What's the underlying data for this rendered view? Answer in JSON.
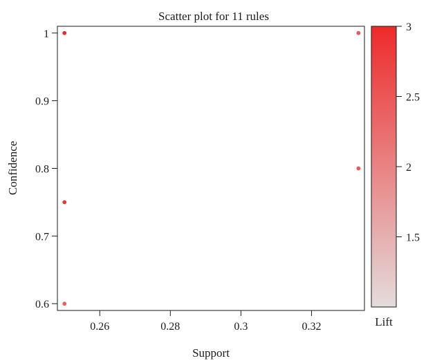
{
  "chart_data": {
    "type": "scatter",
    "title": "Scatter plot for 11 rules",
    "xlabel": "Support",
    "ylabel": "Confidence",
    "xlim": [
      0.248,
      0.335
    ],
    "ylim": [
      0.59,
      1.01
    ],
    "x_ticks": [
      0.26,
      0.28,
      0.3,
      0.32
    ],
    "x_tick_labels": [
      "0.26",
      "0.28",
      "0.3",
      "0.32"
    ],
    "y_ticks": [
      0.6,
      0.7,
      0.8,
      0.9,
      1.0
    ],
    "y_tick_labels": [
      "0.6",
      "0.7",
      "0.8",
      "0.9",
      "1"
    ],
    "color_legend": {
      "label": "Lift",
      "range": [
        1.0,
        3.0
      ],
      "ticks": [
        1.5,
        2,
        2.5,
        3
      ],
      "tick_labels": [
        "1.5",
        "2",
        "2.5",
        "3"
      ],
      "low_color": "#e3dcdc",
      "high_color": "#ee2a2a"
    },
    "points": [
      {
        "support": 0.25,
        "confidence": 1.0,
        "lift": 3.0
      },
      {
        "support": 0.25,
        "confidence": 1.0,
        "lift": 3.0
      },
      {
        "support": 0.25,
        "confidence": 0.75,
        "lift": 2.9
      },
      {
        "support": 0.25,
        "confidence": 0.75,
        "lift": 2.9
      },
      {
        "support": 0.25,
        "confidence": 0.6,
        "lift": 2.4
      },
      {
        "support": 0.25,
        "confidence": 0.6,
        "lift": 2.4
      },
      {
        "support": 0.3333,
        "confidence": 1.0,
        "lift": 2.5
      },
      {
        "support": 0.3333,
        "confidence": 1.0,
        "lift": 2.5
      },
      {
        "support": 0.3333,
        "confidence": 0.8,
        "lift": 2.5
      },
      {
        "support": 0.3333,
        "confidence": 0.8,
        "lift": 2.5
      },
      {
        "support": 0.3333,
        "confidence": 0.8,
        "lift": 2.5
      }
    ],
    "grid": false,
    "legend_position": "right"
  }
}
